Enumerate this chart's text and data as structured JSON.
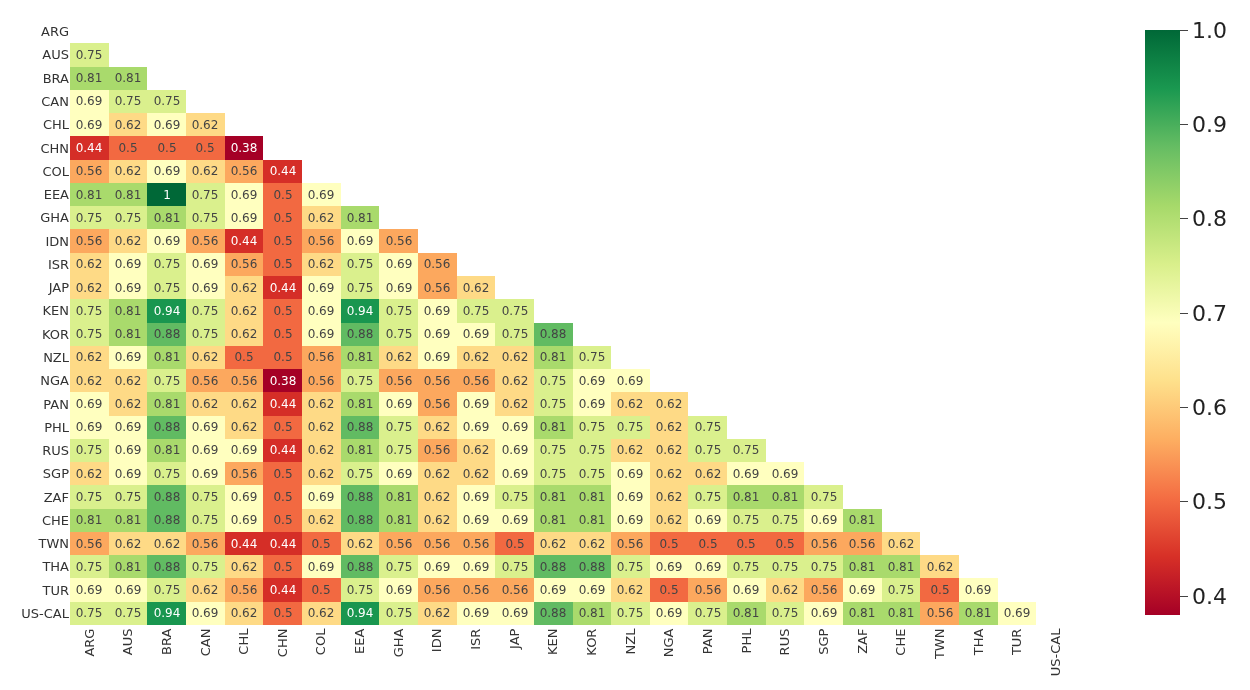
{
  "chart_data": {
    "type": "heatmap",
    "categories": [
      "ARG",
      "AUS",
      "BRA",
      "CAN",
      "CHL",
      "CHN",
      "COL",
      "EEA",
      "GHA",
      "IDN",
      "ISR",
      "JAP",
      "KEN",
      "KOR",
      "NZL",
      "NGA",
      "PAN",
      "PHL",
      "RUS",
      "SGP",
      "ZAF",
      "CHE",
      "TWN",
      "THA",
      "TUR",
      "US-CAL"
    ],
    "y_categories": [
      "ARG",
      "AUS",
      "BRA",
      "CAN",
      "CHL",
      "CHN",
      "COL",
      "EEA",
      "GHA",
      "IDN",
      "ISR",
      "JAP",
      "KEN",
      "KOR",
      "NZL",
      "NGA",
      "PAN",
      "PHL",
      "RUS",
      "SGP",
      "ZAF",
      "CHE",
      "TWN",
      "THA",
      "TUR",
      "US-CAL"
    ],
    "cells": [
      [
        null,
        null,
        null,
        null,
        null,
        null,
        null,
        null,
        null,
        null,
        null,
        null,
        null,
        null,
        null,
        null,
        null,
        null,
        null,
        null,
        null,
        null,
        null,
        null,
        null,
        null
      ],
      [
        0.75,
        null,
        null,
        null,
        null,
        null,
        null,
        null,
        null,
        null,
        null,
        null,
        null,
        null,
        null,
        null,
        null,
        null,
        null,
        null,
        null,
        null,
        null,
        null,
        null,
        null
      ],
      [
        0.81,
        0.81,
        null,
        null,
        null,
        null,
        null,
        null,
        null,
        null,
        null,
        null,
        null,
        null,
        null,
        null,
        null,
        null,
        null,
        null,
        null,
        null,
        null,
        null,
        null,
        null
      ],
      [
        0.69,
        0.75,
        0.75,
        null,
        null,
        null,
        null,
        null,
        null,
        null,
        null,
        null,
        null,
        null,
        null,
        null,
        null,
        null,
        null,
        null,
        null,
        null,
        null,
        null,
        null,
        null
      ],
      [
        0.69,
        0.62,
        0.69,
        0.62,
        null,
        null,
        null,
        null,
        null,
        null,
        null,
        null,
        null,
        null,
        null,
        null,
        null,
        null,
        null,
        null,
        null,
        null,
        null,
        null,
        null,
        null
      ],
      [
        0.44,
        0.5,
        0.5,
        0.5,
        0.38,
        null,
        null,
        null,
        null,
        null,
        null,
        null,
        null,
        null,
        null,
        null,
        null,
        null,
        null,
        null,
        null,
        null,
        null,
        null,
        null,
        null
      ],
      [
        0.56,
        0.62,
        0.69,
        0.62,
        0.56,
        0.44,
        null,
        null,
        null,
        null,
        null,
        null,
        null,
        null,
        null,
        null,
        null,
        null,
        null,
        null,
        null,
        null,
        null,
        null,
        null,
        null
      ],
      [
        0.81,
        0.81,
        1,
        0.75,
        0.69,
        0.5,
        0.69,
        null,
        null,
        null,
        null,
        null,
        null,
        null,
        null,
        null,
        null,
        null,
        null,
        null,
        null,
        null,
        null,
        null,
        null,
        null
      ],
      [
        0.75,
        0.75,
        0.81,
        0.75,
        0.69,
        0.5,
        0.62,
        0.81,
        null,
        null,
        null,
        null,
        null,
        null,
        null,
        null,
        null,
        null,
        null,
        null,
        null,
        null,
        null,
        null,
        null,
        null
      ],
      [
        0.56,
        0.62,
        0.69,
        0.56,
        0.44,
        0.5,
        0.56,
        0.69,
        0.56,
        null,
        null,
        null,
        null,
        null,
        null,
        null,
        null,
        null,
        null,
        null,
        null,
        null,
        null,
        null,
        null,
        null
      ],
      [
        0.62,
        0.69,
        0.75,
        0.69,
        0.56,
        0.5,
        0.62,
        0.75,
        0.69,
        0.56,
        null,
        null,
        null,
        null,
        null,
        null,
        null,
        null,
        null,
        null,
        null,
        null,
        null,
        null,
        null,
        null
      ],
      [
        0.62,
        0.69,
        0.75,
        0.69,
        0.62,
        0.44,
        0.69,
        0.75,
        0.69,
        0.56,
        0.62,
        null,
        null,
        null,
        null,
        null,
        null,
        null,
        null,
        null,
        null,
        null,
        null,
        null,
        null,
        null
      ],
      [
        0.75,
        0.81,
        0.94,
        0.75,
        0.62,
        0.5,
        0.69,
        0.94,
        0.75,
        0.69,
        0.75,
        0.75,
        null,
        null,
        null,
        null,
        null,
        null,
        null,
        null,
        null,
        null,
        null,
        null,
        null,
        null
      ],
      [
        0.75,
        0.81,
        0.88,
        0.75,
        0.62,
        0.5,
        0.69,
        0.88,
        0.75,
        0.69,
        0.69,
        0.75,
        0.88,
        null,
        null,
        null,
        null,
        null,
        null,
        null,
        null,
        null,
        null,
        null,
        null,
        null
      ],
      [
        0.62,
        0.69,
        0.81,
        0.62,
        0.5,
        0.5,
        0.56,
        0.81,
        0.62,
        0.69,
        0.62,
        0.62,
        0.81,
        0.75,
        null,
        null,
        null,
        null,
        null,
        null,
        null,
        null,
        null,
        null,
        null,
        null
      ],
      [
        0.62,
        0.62,
        0.75,
        0.56,
        0.56,
        0.38,
        0.56,
        0.75,
        0.56,
        0.56,
        0.56,
        0.62,
        0.75,
        0.69,
        0.69,
        null,
        null,
        null,
        null,
        null,
        null,
        null,
        null,
        null,
        null,
        null
      ],
      [
        0.69,
        0.62,
        0.81,
        0.62,
        0.62,
        0.44,
        0.62,
        0.81,
        0.69,
        0.56,
        0.69,
        0.62,
        0.75,
        0.69,
        0.62,
        0.62,
        null,
        null,
        null,
        null,
        null,
        null,
        null,
        null,
        null,
        null
      ],
      [
        0.69,
        0.69,
        0.88,
        0.69,
        0.62,
        0.5,
        0.62,
        0.88,
        0.75,
        0.62,
        0.69,
        0.69,
        0.81,
        0.75,
        0.75,
        0.62,
        0.75,
        null,
        null,
        null,
        null,
        null,
        null,
        null,
        null,
        null
      ],
      [
        0.75,
        0.69,
        0.81,
        0.69,
        0.69,
        0.44,
        0.62,
        0.81,
        0.75,
        0.56,
        0.62,
        0.69,
        0.75,
        0.75,
        0.62,
        0.62,
        0.75,
        0.75,
        null,
        null,
        null,
        null,
        null,
        null,
        null,
        null
      ],
      [
        0.62,
        0.69,
        0.75,
        0.69,
        0.56,
        0.5,
        0.62,
        0.75,
        0.69,
        0.62,
        0.62,
        0.69,
        0.75,
        0.75,
        0.69,
        0.62,
        0.62,
        0.69,
        0.69,
        null,
        null,
        null,
        null,
        null,
        null,
        null
      ],
      [
        0.75,
        0.75,
        0.88,
        0.75,
        0.69,
        0.5,
        0.69,
        0.88,
        0.81,
        0.62,
        0.69,
        0.75,
        0.81,
        0.81,
        0.69,
        0.62,
        0.75,
        0.81,
        0.81,
        0.75,
        null,
        null,
        null,
        null,
        null,
        null
      ],
      [
        0.81,
        0.81,
        0.88,
        0.75,
        0.69,
        0.5,
        0.62,
        0.88,
        0.81,
        0.62,
        0.69,
        0.69,
        0.81,
        0.81,
        0.69,
        0.62,
        0.69,
        0.75,
        0.75,
        0.69,
        0.81,
        null,
        null,
        null,
        null,
        null
      ],
      [
        0.56,
        0.62,
        0.62,
        0.56,
        0.44,
        0.44,
        0.5,
        0.62,
        0.56,
        0.56,
        0.56,
        0.5,
        0.62,
        0.62,
        0.56,
        0.5,
        0.5,
        0.5,
        0.5,
        0.56,
        0.56,
        0.62,
        null,
        null,
        null,
        null
      ],
      [
        0.75,
        0.81,
        0.88,
        0.75,
        0.62,
        0.5,
        0.69,
        0.88,
        0.75,
        0.69,
        0.69,
        0.75,
        0.88,
        0.88,
        0.75,
        0.69,
        0.69,
        0.75,
        0.75,
        0.75,
        0.81,
        0.81,
        0.62,
        null,
        null,
        null
      ],
      [
        0.69,
        0.69,
        0.75,
        0.62,
        0.56,
        0.44,
        0.5,
        0.75,
        0.69,
        0.56,
        0.56,
        0.56,
        0.69,
        0.69,
        0.62,
        0.5,
        0.56,
        0.69,
        0.62,
        0.56,
        0.69,
        0.75,
        0.5,
        0.69,
        null,
        null
      ],
      [
        0.75,
        0.75,
        0.94,
        0.69,
        0.62,
        0.5,
        0.62,
        0.94,
        0.75,
        0.62,
        0.69,
        0.69,
        0.88,
        0.81,
        0.75,
        0.69,
        0.75,
        0.81,
        0.75,
        0.69,
        0.81,
        0.81,
        0.56,
        0.81,
        0.69,
        null
      ]
    ],
    "clim": [
      0.38,
      1.0
    ],
    "cticks": [
      {
        "value": 0.4,
        "label": "0.4"
      },
      {
        "value": 0.5,
        "label": "0.5"
      },
      {
        "value": 0.6,
        "label": "0.6"
      },
      {
        "value": 0.7,
        "label": "0.7"
      },
      {
        "value": 0.8,
        "label": "0.8"
      },
      {
        "value": 0.9,
        "label": "0.9"
      },
      {
        "value": 1.0,
        "label": "1.0"
      }
    ],
    "data_labels": true
  }
}
